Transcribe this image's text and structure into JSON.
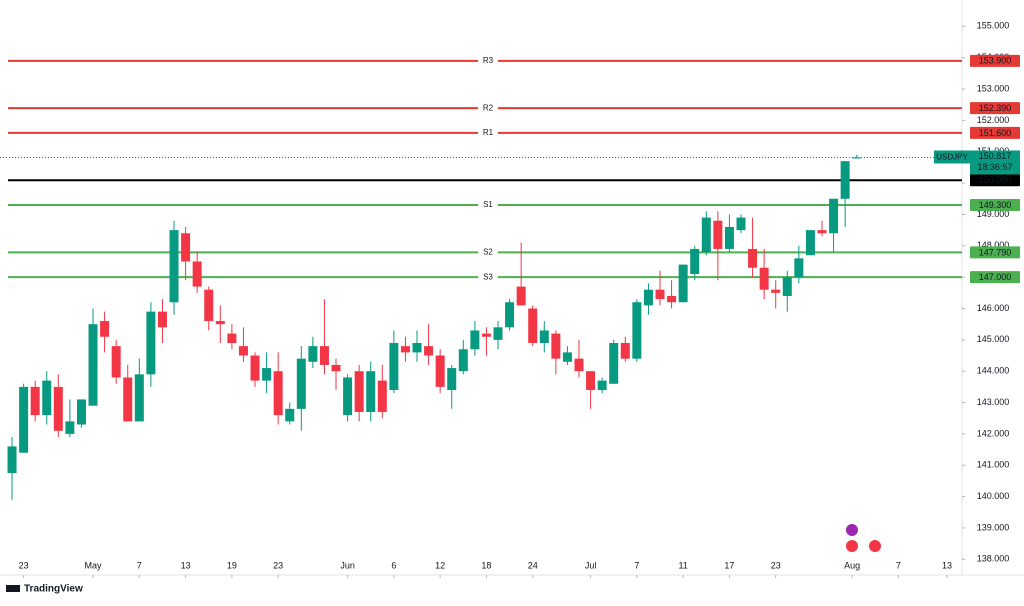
{
  "chart_data": {
    "type": "candlestick",
    "symbol": "USDJPY",
    "up_color": "#089981",
    "down_color": "#f23645",
    "open": [
      140.75,
      141.4,
      143.5,
      142.6,
      143.5,
      142.0,
      142.3,
      142.9,
      145.6,
      144.8,
      143.8,
      142.4,
      143.9,
      145.9,
      146.2,
      148.4,
      147.5,
      146.6,
      145.6,
      145.2,
      144.8,
      144.5,
      143.7,
      144.0,
      142.4,
      142.8,
      144.3,
      144.8,
      144.2,
      142.6,
      144.0,
      142.7,
      143.7,
      143.4,
      144.8,
      144.6,
      144.8,
      144.5,
      143.4,
      144.0,
      144.7,
      145.2,
      145.0,
      145.4,
      146.7,
      146.0,
      144.9,
      145.2,
      144.3,
      144.4,
      144.0,
      143.4,
      143.6,
      144.9,
      144.4,
      146.1,
      146.6,
      146.4,
      146.2,
      147.1,
      147.8,
      148.8,
      147.9,
      148.5,
      147.9,
      147.3,
      146.6,
      146.4,
      147.0,
      147.7,
      148.5,
      148.4,
      149.5,
      150.8
    ],
    "high": [
      141.9,
      143.6,
      143.7,
      144.0,
      143.9,
      143.1,
      143.1,
      146.0,
      145.9,
      145.0,
      144.2,
      144.4,
      146.2,
      146.3,
      148.8,
      148.6,
      147.8,
      146.7,
      146.1,
      145.5,
      145.4,
      144.6,
      144.6,
      144.6,
      143.0,
      144.8,
      145.1,
      146.3,
      144.4,
      143.9,
      144.2,
      144.3,
      144.2,
      145.3,
      145.1,
      145.3,
      145.5,
      144.7,
      144.2,
      145.0,
      145.6,
      145.4,
      145.6,
      146.3,
      148.1,
      146.1,
      145.6,
      145.3,
      144.8,
      145.0,
      144.0,
      143.8,
      145.0,
      145.1,
      146.3,
      146.8,
      147.2,
      146.9,
      147.4,
      148.0,
      149.1,
      149.1,
      149.0,
      149.0,
      148.9,
      147.9,
      146.9,
      147.2,
      148.0,
      148.5,
      148.8,
      149.5,
      150.7,
      150.9
    ],
    "low": [
      139.9,
      141.4,
      142.4,
      142.3,
      141.9,
      141.9,
      142.2,
      142.9,
      144.6,
      143.6,
      142.4,
      142.4,
      143.5,
      144.9,
      145.8,
      146.9,
      146.5,
      145.3,
      144.9,
      144.7,
      144.3,
      143.5,
      143.3,
      142.3,
      142.3,
      142.1,
      144.1,
      143.9,
      143.4,
      142.4,
      142.4,
      142.4,
      142.5,
      143.3,
      144.3,
      144.3,
      144.2,
      143.3,
      142.8,
      143.9,
      144.5,
      144.5,
      144.7,
      145.3,
      146.1,
      144.8,
      144.6,
      143.9,
      144.2,
      143.8,
      142.8,
      143.3,
      143.6,
      144.3,
      144.3,
      145.8,
      146.1,
      146.0,
      146.2,
      146.9,
      147.7,
      146.9,
      147.8,
      148.4,
      147.0,
      146.3,
      146.0,
      145.9,
      146.8,
      147.7,
      148.3,
      147.8,
      148.6,
      150.8
    ],
    "close": [
      141.6,
      143.5,
      142.6,
      143.7,
      142.1,
      142.4,
      143.1,
      145.5,
      145.1,
      143.8,
      142.4,
      143.9,
      145.9,
      145.4,
      148.5,
      147.5,
      146.7,
      145.6,
      145.5,
      144.9,
      144.5,
      143.7,
      144.1,
      142.6,
      142.8,
      144.4,
      144.8,
      144.2,
      144.0,
      143.8,
      142.7,
      144.0,
      142.7,
      144.9,
      144.6,
      144.9,
      144.5,
      143.5,
      144.1,
      144.7,
      145.3,
      145.1,
      145.4,
      146.2,
      146.1,
      144.9,
      145.3,
      144.4,
      144.6,
      144.0,
      143.4,
      143.7,
      144.9,
      144.4,
      146.2,
      146.6,
      146.3,
      146.2,
      147.4,
      147.9,
      148.9,
      147.9,
      148.6,
      148.9,
      147.3,
      146.6,
      146.5,
      147.0,
      147.6,
      148.5,
      148.4,
      149.5,
      150.7,
      150.817
    ],
    "last_value": 150.817,
    "countdown": "18:36:57",
    "levels": [
      {
        "name": "R3",
        "value": 153.9,
        "label": "153.900",
        "color": "#e53935"
      },
      {
        "name": "R2",
        "value": 152.39,
        "label": "152.390",
        "color": "#e53935"
      },
      {
        "name": "R1",
        "value": 151.6,
        "label": "151.600",
        "color": "#e53935"
      },
      {
        "value": 150.09,
        "label": "150.090",
        "color": "#000000"
      },
      {
        "name": "S1",
        "value": 149.3,
        "label": "149.300",
        "color": "#4caf50"
      },
      {
        "name": "S2",
        "value": 147.79,
        "label": "147.790",
        "color": "#4caf50"
      },
      {
        "name": "S3",
        "value": 147.0,
        "label": "147.000",
        "color": "#4caf50"
      }
    ],
    "xlim": [
      -1.04,
      82.1
    ],
    "xticks": [
      {
        "value": 1,
        "label": "23"
      },
      {
        "value": 7,
        "label": "May"
      },
      {
        "value": 11,
        "label": "7"
      },
      {
        "value": 15,
        "label": "13"
      },
      {
        "value": 19,
        "label": "19"
      },
      {
        "value": 23,
        "label": "23"
      },
      {
        "value": 29,
        "label": "Jun"
      },
      {
        "value": 33,
        "label": "6"
      },
      {
        "value": 37,
        "label": "12"
      },
      {
        "value": 41,
        "label": "18"
      },
      {
        "value": 45,
        "label": "24"
      },
      {
        "value": 50,
        "label": "Jul"
      },
      {
        "value": 54,
        "label": "7"
      },
      {
        "value": 58,
        "label": "11"
      },
      {
        "value": 62,
        "label": "17"
      },
      {
        "value": 66,
        "label": "23"
      },
      {
        "value": 72.6,
        "label": "Aug"
      },
      {
        "value": 76.6,
        "label": "7"
      },
      {
        "value": 80.8,
        "label": "13"
      }
    ],
    "ylim": [
      137.5,
      155.84
    ],
    "yticks": [
      {
        "value": 138,
        "label": "138.000"
      },
      {
        "value": 139,
        "label": "139.000"
      },
      {
        "value": 140,
        "label": "140.000"
      },
      {
        "value": 141,
        "label": "141.000"
      },
      {
        "value": 142,
        "label": "142.000"
      },
      {
        "value": 143,
        "label": "143.000"
      },
      {
        "value": 144,
        "label": "144.000"
      },
      {
        "value": 145,
        "label": "145.000"
      },
      {
        "value": 146,
        "label": "146.000"
      },
      {
        "value": 147,
        "label": "147.000"
      },
      {
        "value": 148,
        "label": "148.000"
      },
      {
        "value": 149,
        "label": "149.000"
      },
      {
        "value": 150,
        "label": "150.000"
      },
      {
        "value": 151,
        "label": "151.000"
      },
      {
        "value": 152,
        "label": "152.000"
      },
      {
        "value": 153,
        "label": "153.000"
      },
      {
        "value": 154,
        "label": "154.000"
      },
      {
        "value": 155,
        "label": "155.000"
      }
    ],
    "grid": false
  },
  "brand": "TradingView"
}
